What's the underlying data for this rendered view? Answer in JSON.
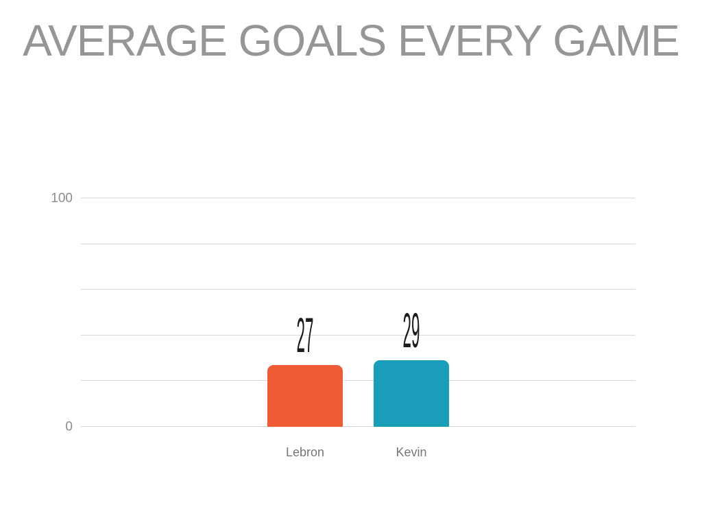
{
  "title": {
    "text": "AVERAGE GOALS EVERY GAME"
  },
  "chart_data": {
    "type": "bar",
    "title": "AVERAGE GOALS EVERY GAME",
    "categories": [
      "Lebron",
      "Kevin"
    ],
    "values": [
      27,
      29
    ],
    "value_labels": [
      "27",
      "29"
    ],
    "bar_colors": [
      "#EE5B35",
      "#189EB9"
    ],
    "xlabel": "",
    "ylabel": "",
    "ylim": [
      0,
      100
    ],
    "gridlines": [
      0,
      20,
      40,
      60,
      80,
      100
    ],
    "yticks": [
      {
        "value": 100,
        "label": "100"
      },
      {
        "value": 0,
        "label": "0"
      }
    ],
    "grid": true,
    "legend": false
  },
  "colors": {
    "background": "#FFFFFF",
    "title": "#969696",
    "gridline": "#D9D9D9",
    "axis_tick_label": "#8C8C8C",
    "category_label": "#757575",
    "value_label": "#1C1C1C"
  }
}
